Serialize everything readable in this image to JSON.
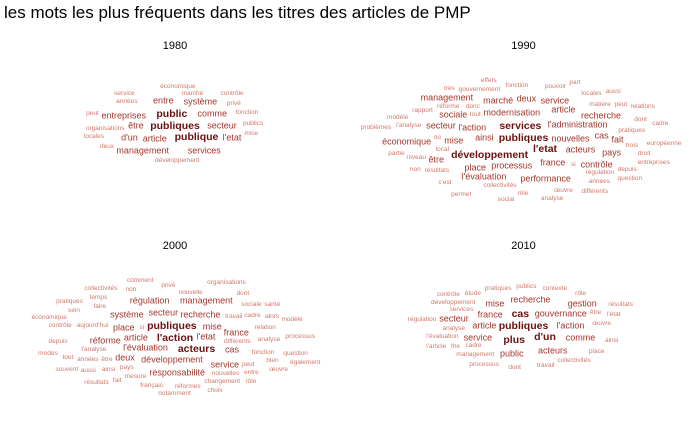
{
  "title": "les mots les plus fréquents dans les titres des articles de PMP",
  "colors": {
    "top": "#6b0f0f",
    "mid": "#a4362c",
    "low": "#d07a6c"
  },
  "chart_data": [
    {
      "type": "wordcloud",
      "title": "1980",
      "words": [
        {
          "text": "organisations",
          "weight": 1
        },
        {
          "text": "années",
          "weight": 1
        },
        {
          "text": "marché",
          "weight": 1
        },
        {
          "text": "privé",
          "weight": 1
        },
        {
          "text": "développement",
          "weight": 1
        },
        {
          "text": "article",
          "weight": 2
        },
        {
          "text": "être",
          "weight": 2
        },
        {
          "text": "fonction",
          "weight": 1
        },
        {
          "text": "comme",
          "weight": 2
        },
        {
          "text": "publiques",
          "weight": 3
        },
        {
          "text": "secteur",
          "weight": 2
        },
        {
          "text": "publics",
          "weight": 1
        },
        {
          "text": "locales",
          "weight": 1
        },
        {
          "text": "entreprises",
          "weight": 2
        },
        {
          "text": "d'un",
          "weight": 2
        },
        {
          "text": "public",
          "weight": 3
        },
        {
          "text": "entre",
          "weight": 2
        },
        {
          "text": "système",
          "weight": 2
        },
        {
          "text": "service",
          "weight": 1
        },
        {
          "text": "économique",
          "weight": 1
        },
        {
          "text": "l'etat",
          "weight": 2
        },
        {
          "text": "publique",
          "weight": 3
        },
        {
          "text": "contrôle",
          "weight": 1
        },
        {
          "text": "mise",
          "weight": 1
        },
        {
          "text": "services",
          "weight": 2
        },
        {
          "text": "management",
          "weight": 2
        },
        {
          "text": "deux",
          "weight": 1
        },
        {
          "text": "peut",
          "weight": 1
        }
      ]
    },
    {
      "type": "wordcloud",
      "title": "1990",
      "words": [
        {
          "text": "réforme",
          "weight": 1
        },
        {
          "text": "matière",
          "weight": 1
        },
        {
          "text": "pratiques",
          "weight": 1
        },
        {
          "text": "régulation",
          "weight": 1
        },
        {
          "text": "collectivités",
          "weight": 1
        },
        {
          "text": "résultats",
          "weight": 1
        },
        {
          "text": "l'analyse",
          "weight": 1
        },
        {
          "text": "nouvelles",
          "weight": 2
        },
        {
          "text": "gouvernement",
          "weight": 1
        },
        {
          "text": "local",
          "weight": 1
        },
        {
          "text": "rapport",
          "weight": 1
        },
        {
          "text": "modernisation",
          "weight": 2
        },
        {
          "text": "ainsi",
          "weight": 2
        },
        {
          "text": "l'administration",
          "weight": 2
        },
        {
          "text": "tout",
          "weight": 1
        },
        {
          "text": "fonction",
          "weight": 1
        },
        {
          "text": "l'action",
          "weight": 2
        },
        {
          "text": "acteurs",
          "weight": 2
        },
        {
          "text": "pouvoir",
          "weight": 1
        },
        {
          "text": "donc",
          "weight": 1
        },
        {
          "text": "locales",
          "weight": 1
        },
        {
          "text": "niveau",
          "weight": 1
        },
        {
          "text": "france",
          "weight": 2
        },
        {
          "text": "processus",
          "weight": 2
        },
        {
          "text": "mise",
          "weight": 2
        },
        {
          "text": "peut",
          "weight": 1
        },
        {
          "text": "dont",
          "weight": 1
        },
        {
          "text": "article",
          "weight": 2
        },
        {
          "text": "publiques",
          "weight": 3
        },
        {
          "text": "si",
          "weight": 1
        },
        {
          "text": "trois",
          "weight": 1
        },
        {
          "text": "droit",
          "weight": 1
        },
        {
          "text": "place",
          "weight": 2
        },
        {
          "text": "secteur",
          "weight": 2
        },
        {
          "text": "services",
          "weight": 3
        },
        {
          "text": "sociale",
          "weight": 2
        },
        {
          "text": "l'etat",
          "weight": 3
        },
        {
          "text": "marché",
          "weight": 2
        },
        {
          "text": "depuis",
          "weight": 1
        },
        {
          "text": "années",
          "weight": 1
        },
        {
          "text": "service",
          "weight": 2
        },
        {
          "text": "cas",
          "weight": 2
        },
        {
          "text": "développement",
          "weight": 3
        },
        {
          "text": "deux",
          "weight": 2
        },
        {
          "text": "recherche",
          "weight": 2
        },
        {
          "text": "œuvre",
          "weight": 1
        },
        {
          "text": "rôle",
          "weight": 1
        },
        {
          "text": "pays",
          "weight": 2
        },
        {
          "text": "contrôle",
          "weight": 2
        },
        {
          "text": "c'est",
          "weight": 1
        },
        {
          "text": "modèle",
          "weight": 1
        },
        {
          "text": "performance",
          "weight": 2
        },
        {
          "text": "l'évaluation",
          "weight": 2
        },
        {
          "text": "fait",
          "weight": 2
        },
        {
          "text": "partie",
          "weight": 1
        },
        {
          "text": "être",
          "weight": 2
        },
        {
          "text": "non",
          "weight": 1
        },
        {
          "text": "européenne",
          "weight": 1
        },
        {
          "text": "effets",
          "weight": 1
        },
        {
          "text": "où",
          "weight": 1
        },
        {
          "text": "aussi",
          "weight": 1
        },
        {
          "text": "économique",
          "weight": 2
        },
        {
          "text": "management",
          "weight": 2
        },
        {
          "text": "relations",
          "weight": 1
        },
        {
          "text": "entreprises",
          "weight": 1
        },
        {
          "text": "différents",
          "weight": 1
        },
        {
          "text": "cadre",
          "weight": 1
        },
        {
          "text": "très",
          "weight": 1
        },
        {
          "text": "question",
          "weight": 1
        },
        {
          "text": "part",
          "weight": 1
        },
        {
          "text": "analyse",
          "weight": 1
        },
        {
          "text": "permet",
          "weight": 1
        },
        {
          "text": "problèmes",
          "weight": 1
        },
        {
          "text": "social",
          "weight": 1
        }
      ]
    },
    {
      "type": "wordcloud",
      "title": "2000",
      "words": [
        {
          "text": "différents",
          "weight": 1
        },
        {
          "text": "travail",
          "weight": 1
        },
        {
          "text": "l'analyse",
          "weight": 1
        },
        {
          "text": "pays",
          "weight": 1
        },
        {
          "text": "aujourd'hui",
          "weight": 1
        },
        {
          "text": "relation",
          "weight": 1
        },
        {
          "text": "analyse",
          "weight": 1
        },
        {
          "text": "fonction",
          "weight": 1
        },
        {
          "text": "nouvelles",
          "weight": 1
        },
        {
          "text": "cadre",
          "weight": 1
        },
        {
          "text": "mesure",
          "weight": 1
        },
        {
          "text": "années",
          "weight": 1
        },
        {
          "text": "peut",
          "weight": 1
        },
        {
          "text": "ainsi",
          "weight": 1
        },
        {
          "text": "développement",
          "weight": 2
        },
        {
          "text": "si",
          "weight": 1
        },
        {
          "text": "nouvelle",
          "weight": 1
        },
        {
          "text": "faire",
          "weight": 1
        },
        {
          "text": "sociale",
          "weight": 1
        },
        {
          "text": "alors",
          "weight": 1
        },
        {
          "text": "l'évaluation",
          "weight": 2
        },
        {
          "text": "article",
          "weight": 2
        },
        {
          "text": "l'etat",
          "weight": 2
        },
        {
          "text": "mise",
          "weight": 2
        },
        {
          "text": "place",
          "weight": 2
        },
        {
          "text": "changement",
          "weight": 1
        },
        {
          "text": "bien",
          "weight": 1
        },
        {
          "text": "réformes",
          "weight": 1
        },
        {
          "text": "être",
          "weight": 1
        },
        {
          "text": "secteur",
          "weight": 2
        },
        {
          "text": "l'action",
          "weight": 3
        },
        {
          "text": "publiques",
          "weight": 3
        },
        {
          "text": "recherche",
          "weight": 2
        },
        {
          "text": "entre",
          "weight": 1
        },
        {
          "text": "français",
          "weight": 1
        },
        {
          "text": "france",
          "weight": 2
        },
        {
          "text": "acteurs",
          "weight": 3
        },
        {
          "text": "système",
          "weight": 2
        },
        {
          "text": "cas",
          "weight": 2
        },
        {
          "text": "deux",
          "weight": 2
        },
        {
          "text": "aussi",
          "weight": 1
        },
        {
          "text": "depuis",
          "weight": 1
        },
        {
          "text": "réforme",
          "weight": 2
        },
        {
          "text": "contrôle",
          "weight": 1
        },
        {
          "text": "service",
          "weight": 2
        },
        {
          "text": "responsabilité",
          "weight": 2
        },
        {
          "text": "régulation",
          "weight": 2
        },
        {
          "text": "tout",
          "weight": 1
        },
        {
          "text": "sein",
          "weight": 1
        },
        {
          "text": "temps",
          "weight": 1
        },
        {
          "text": "management",
          "weight": 2
        },
        {
          "text": "non",
          "weight": 1
        },
        {
          "text": "modèle",
          "weight": 1
        },
        {
          "text": "processus",
          "weight": 1
        },
        {
          "text": "question",
          "weight": 1
        },
        {
          "text": "fait",
          "weight": 1
        },
        {
          "text": "œuvre",
          "weight": 1
        },
        {
          "text": "privé",
          "weight": 1
        },
        {
          "text": "notamment",
          "weight": 1
        },
        {
          "text": "dont",
          "weight": 1
        },
        {
          "text": "résultats",
          "weight": 1
        },
        {
          "text": "économique",
          "weight": 1
        },
        {
          "text": "pratiques",
          "weight": 1
        },
        {
          "text": "santé",
          "weight": 1
        },
        {
          "text": "rôle",
          "weight": 1
        },
        {
          "text": "collectivités",
          "weight": 1
        },
        {
          "text": "choix",
          "weight": 1
        },
        {
          "text": "souvent",
          "weight": 1
        },
        {
          "text": "comment",
          "weight": 1
        },
        {
          "text": "organisations",
          "weight": 1
        },
        {
          "text": "également",
          "weight": 1
        },
        {
          "text": "modes",
          "weight": 1
        }
      ]
    },
    {
      "type": "wordcloud",
      "title": "2010",
      "words": [
        {
          "text": "cadre",
          "weight": 1
        },
        {
          "text": "analyse",
          "weight": 1
        },
        {
          "text": "management",
          "weight": 1
        },
        {
          "text": "services",
          "weight": 1
        },
        {
          "text": "gouvernance",
          "weight": 2
        },
        {
          "text": "l'évaluation",
          "weight": 1
        },
        {
          "text": "développement",
          "weight": 1
        },
        {
          "text": "être",
          "weight": 1
        },
        {
          "text": "france",
          "weight": 2
        },
        {
          "text": "l'action",
          "weight": 2
        },
        {
          "text": "article",
          "weight": 2
        },
        {
          "text": "publiques",
          "weight": 3
        },
        {
          "text": "service",
          "weight": 2
        },
        {
          "text": "œuvre",
          "weight": 1
        },
        {
          "text": "étude",
          "weight": 1
        },
        {
          "text": "the",
          "weight": 1
        },
        {
          "text": "pratiques",
          "weight": 1
        },
        {
          "text": "cas",
          "weight": 3
        },
        {
          "text": "d'un",
          "weight": 3
        },
        {
          "text": "mise",
          "weight": 2
        },
        {
          "text": "publics",
          "weight": 1
        },
        {
          "text": "contexte",
          "weight": 1
        },
        {
          "text": "recherche",
          "weight": 2
        },
        {
          "text": "plus",
          "weight": 3
        },
        {
          "text": "comme",
          "weight": 2
        },
        {
          "text": "rôle",
          "weight": 1
        },
        {
          "text": "acteurs",
          "weight": 2
        },
        {
          "text": "public",
          "weight": 2
        },
        {
          "text": "l'état",
          "weight": 1
        },
        {
          "text": "ainsi",
          "weight": 1
        },
        {
          "text": "place",
          "weight": 1
        },
        {
          "text": "secteur",
          "weight": 2
        },
        {
          "text": "gestion",
          "weight": 2
        },
        {
          "text": "collectivités",
          "weight": 1
        },
        {
          "text": "travail",
          "weight": 1
        },
        {
          "text": "dont",
          "weight": 1
        },
        {
          "text": "processus",
          "weight": 1
        },
        {
          "text": "régulation",
          "weight": 1
        },
        {
          "text": "l'article",
          "weight": 1
        },
        {
          "text": "contrôle",
          "weight": 1
        },
        {
          "text": "résultats",
          "weight": 1
        }
      ]
    }
  ]
}
